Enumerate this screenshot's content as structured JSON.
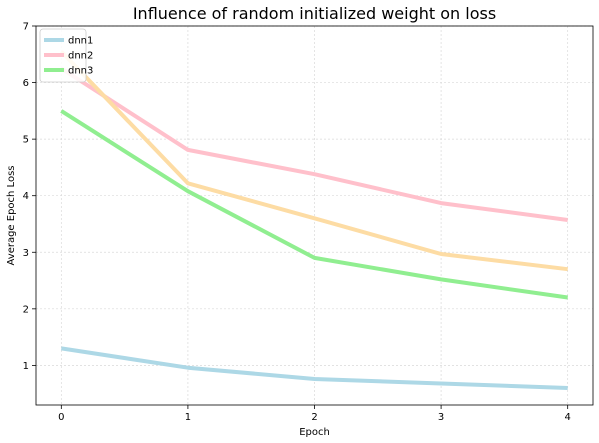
{
  "chart_data": {
    "type": "line",
    "title": "Influence of random initialized weight on loss",
    "xlabel": "Epoch",
    "ylabel": "Average Epoch Loss",
    "x": [
      0,
      1,
      2,
      3,
      4
    ],
    "xlim": [
      -0.2,
      4.2
    ],
    "ylim": [
      0.3,
      7.0
    ],
    "xticks": [
      0,
      1,
      2,
      3,
      4
    ],
    "yticks": [
      1,
      2,
      3,
      4,
      5,
      6,
      7
    ],
    "grid": true,
    "legend_position": "top-left",
    "series": [
      {
        "name": "dnn1",
        "color": "#add8e6",
        "in_legend": true,
        "values": [
          1.3,
          0.96,
          0.76,
          0.68,
          0.6
        ]
      },
      {
        "name": "dnn2",
        "color": "#ffc0cb",
        "in_legend": true,
        "values": [
          6.25,
          4.81,
          4.38,
          3.87,
          3.57
        ]
      },
      {
        "name": "dnn3",
        "color": "#90ee90",
        "in_legend": true,
        "values": [
          5.5,
          4.08,
          2.9,
          2.52,
          2.2
        ]
      },
      {
        "name": "",
        "color": "#fddca4",
        "in_legend": false,
        "values": [
          6.55,
          4.22,
          3.6,
          2.97,
          2.7
        ]
      }
    ]
  }
}
